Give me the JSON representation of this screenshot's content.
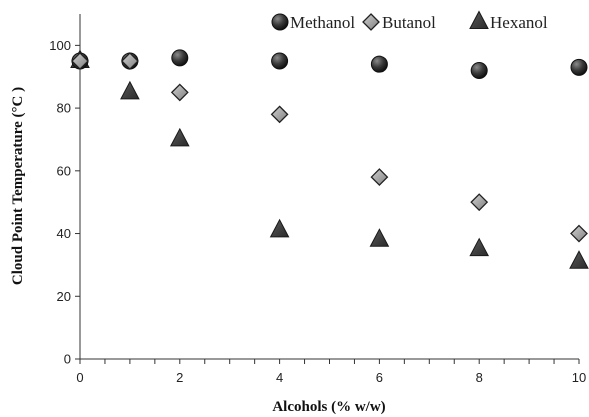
{
  "chart_data": {
    "type": "scatter",
    "xlabel": "Alcohols (% w/w)",
    "ylabel": "Cloud Point Temperature (°C )",
    "xlim": [
      0,
      10
    ],
    "ylim": [
      0,
      110
    ],
    "x_ticks": [
      0,
      2,
      4,
      6,
      8,
      10
    ],
    "x_minor_ticks": [
      0,
      0.5,
      1,
      1.5,
      2,
      2.5,
      3,
      3.5,
      4,
      4.5,
      5,
      5.5,
      6,
      6.5,
      7,
      7.5,
      8,
      8.5,
      9,
      9.5,
      10
    ],
    "y_ticks": [
      0,
      20,
      40,
      60,
      80,
      100
    ],
    "grid": false,
    "legend_position": "top-right",
    "series": [
      {
        "name": "Methanol",
        "marker": "circle",
        "color": "#3a3a3a",
        "points": [
          {
            "x": 0,
            "y": 95
          },
          {
            "x": 1,
            "y": 95
          },
          {
            "x": 2,
            "y": 96
          },
          {
            "x": 4,
            "y": 95
          },
          {
            "x": 6,
            "y": 94
          },
          {
            "x": 8,
            "y": 92
          },
          {
            "x": 10,
            "y": 93
          }
        ]
      },
      {
        "name": "Butanol",
        "marker": "diamond",
        "color": "#a8a8a8",
        "points": [
          {
            "x": 0,
            "y": 95
          },
          {
            "x": 1,
            "y": 95
          },
          {
            "x": 2,
            "y": 85
          },
          {
            "x": 4,
            "y": 78
          },
          {
            "x": 6,
            "y": 58
          },
          {
            "x": 8,
            "y": 50
          },
          {
            "x": 10,
            "y": 40
          }
        ]
      },
      {
        "name": "Hexanol",
        "marker": "triangle",
        "color": "#3f3f3f",
        "points": [
          {
            "x": 0,
            "y": 95
          },
          {
            "x": 1,
            "y": 85
          },
          {
            "x": 2,
            "y": 70
          },
          {
            "x": 4,
            "y": 41
          },
          {
            "x": 6,
            "y": 38
          },
          {
            "x": 8,
            "y": 35
          },
          {
            "x": 10,
            "y": 31
          }
        ]
      }
    ]
  }
}
